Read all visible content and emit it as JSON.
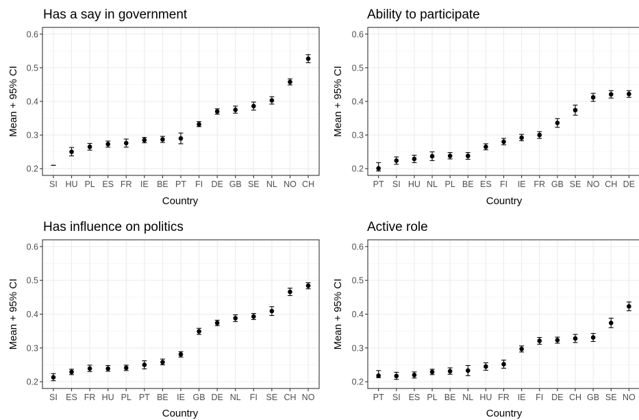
{
  "chart_data": [
    {
      "type": "scatter",
      "title": "Has a say in government",
      "xlabel": "Country",
      "ylabel": "Mean + 95% CI",
      "ylim": [
        0.18,
        0.62
      ],
      "yticks": [
        "0.2",
        "0.3",
        "0.4",
        "0.5",
        "0.6"
      ],
      "grid": true,
      "categories": [
        "SI",
        "HU",
        "PL",
        "ES",
        "FR",
        "IE",
        "BE",
        "PT",
        "FI",
        "DE",
        "GB",
        "SE",
        "NL",
        "NO",
        "CH"
      ],
      "values": [
        null,
        0.25,
        0.265,
        0.273,
        0.276,
        0.285,
        0.287,
        0.29,
        0.332,
        0.37,
        0.375,
        0.386,
        0.403,
        0.458,
        0.527
      ],
      "ci_low": [
        0.21,
        0.238,
        0.255,
        0.264,
        0.264,
        0.277,
        0.278,
        0.274,
        0.325,
        0.362,
        0.365,
        0.374,
        0.392,
        0.449,
        0.515
      ],
      "ci_high": [
        0.21,
        0.263,
        0.275,
        0.282,
        0.288,
        0.293,
        0.296,
        0.306,
        0.34,
        0.378,
        0.386,
        0.398,
        0.414,
        0.467,
        0.539
      ]
    },
    {
      "type": "scatter",
      "title": "Ability to participate",
      "xlabel": "Country",
      "ylabel": "Mean + 95% CI",
      "ylim": [
        0.18,
        0.62
      ],
      "yticks": [
        "0.2",
        "0.3",
        "0.4",
        "0.5",
        "0.6"
      ],
      "grid": true,
      "categories": [
        "PT",
        "SI",
        "HU",
        "NL",
        "PL",
        "BE",
        "ES",
        "FI",
        "IE",
        "FR",
        "GB",
        "SE",
        "NO",
        "CH",
        "DE"
      ],
      "values": [
        0.201,
        0.224,
        0.229,
        0.237,
        0.238,
        0.238,
        0.265,
        0.28,
        0.292,
        0.3,
        0.336,
        0.374,
        0.412,
        0.421,
        0.422
      ],
      "ci_low": [
        0.193,
        0.213,
        0.218,
        0.224,
        0.229,
        0.228,
        0.256,
        0.271,
        0.283,
        0.29,
        0.323,
        0.359,
        0.4,
        0.41,
        0.412
      ],
      "ci_high": [
        0.218,
        0.235,
        0.24,
        0.25,
        0.248,
        0.248,
        0.274,
        0.29,
        0.302,
        0.31,
        0.349,
        0.389,
        0.424,
        0.432,
        0.432
      ]
    },
    {
      "type": "scatter",
      "title": "Has influence on politics",
      "xlabel": "Country",
      "ylabel": "Mean + 95% CI",
      "ylim": [
        0.18,
        0.62
      ],
      "yticks": [
        "0.2",
        "0.3",
        "0.4",
        "0.5",
        "0.6"
      ],
      "grid": true,
      "categories": [
        "SI",
        "ES",
        "FR",
        "HU",
        "PL",
        "PT",
        "BE",
        "IE",
        "GB",
        "DE",
        "NL",
        "FI",
        "SE",
        "CH",
        "NO"
      ],
      "values": [
        0.213,
        0.229,
        0.239,
        0.239,
        0.241,
        0.25,
        0.258,
        0.281,
        0.349,
        0.374,
        0.388,
        0.393,
        0.409,
        0.466,
        0.484
      ],
      "ci_low": [
        0.203,
        0.221,
        0.23,
        0.231,
        0.233,
        0.238,
        0.25,
        0.273,
        0.34,
        0.366,
        0.378,
        0.384,
        0.396,
        0.455,
        0.475
      ],
      "ci_high": [
        0.224,
        0.237,
        0.249,
        0.248,
        0.249,
        0.262,
        0.267,
        0.289,
        0.358,
        0.382,
        0.398,
        0.402,
        0.422,
        0.477,
        0.493
      ]
    },
    {
      "type": "scatter",
      "title": "Active role",
      "xlabel": "Country",
      "ylabel": "Mean + 95% CI",
      "ylim": [
        0.18,
        0.62
      ],
      "yticks": [
        "0.2",
        "0.3",
        "0.4",
        "0.5",
        "0.6"
      ],
      "grid": true,
      "categories": [
        "PT",
        "SI",
        "ES",
        "PL",
        "BE",
        "NL",
        "HU",
        "FR",
        "IE",
        "FI",
        "DE",
        "CH",
        "GB",
        "SE",
        "NO"
      ],
      "values": [
        0.218,
        0.217,
        0.22,
        0.229,
        0.231,
        0.233,
        0.245,
        0.252,
        0.297,
        0.321,
        0.323,
        0.328,
        0.331,
        0.374,
        0.423
      ],
      "ci_low": [
        0.212,
        0.207,
        0.211,
        0.221,
        0.222,
        0.218,
        0.234,
        0.24,
        0.288,
        0.311,
        0.314,
        0.316,
        0.319,
        0.36,
        0.41
      ],
      "ci_high": [
        0.233,
        0.228,
        0.229,
        0.237,
        0.241,
        0.248,
        0.256,
        0.264,
        0.306,
        0.331,
        0.332,
        0.34,
        0.343,
        0.388,
        0.436
      ]
    }
  ]
}
